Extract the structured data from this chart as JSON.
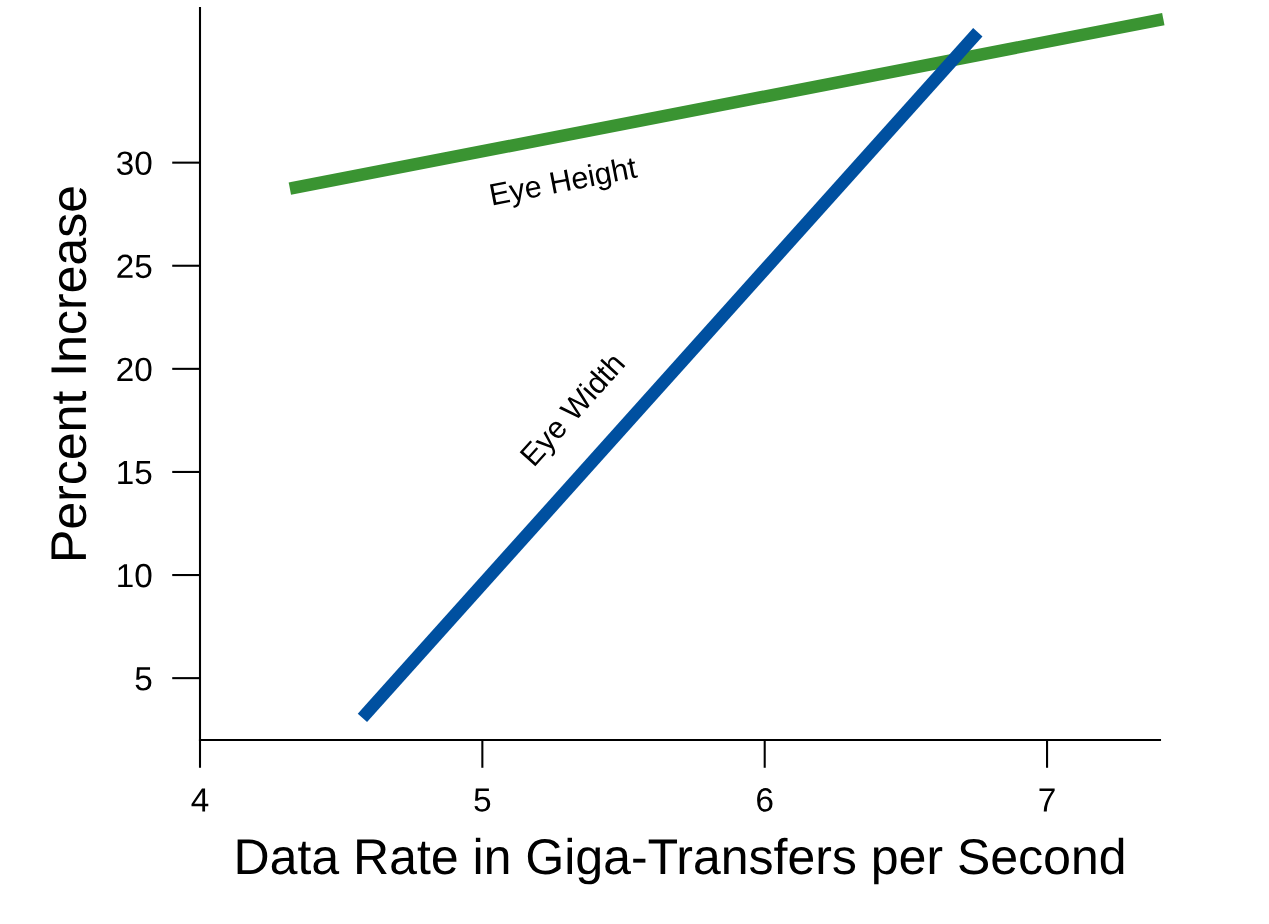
{
  "chart_data": {
    "type": "line",
    "xlabel": "Data Rate in Giga-Transfers per Second",
    "ylabel": "Percent Increase",
    "series": [
      {
        "name": "Eye Height",
        "color": "#3a9432",
        "x": [
          4.34,
          7.39
        ],
        "values": [
          28.8,
          36.9
        ]
      },
      {
        "name": "Eye Width",
        "color": "#0050a0",
        "x": [
          4.59,
          6.74
        ],
        "values": [
          3.3,
          36.1
        ]
      }
    ],
    "xlim": [
      4,
      7.4
    ],
    "ylim": [
      2,
      37.5
    ],
    "xticks": [
      4,
      5,
      6,
      7
    ],
    "yticks": [
      5,
      10,
      15,
      20,
      25,
      30
    ],
    "grid": false,
    "legend": false,
    "line_style": "solid"
  }
}
